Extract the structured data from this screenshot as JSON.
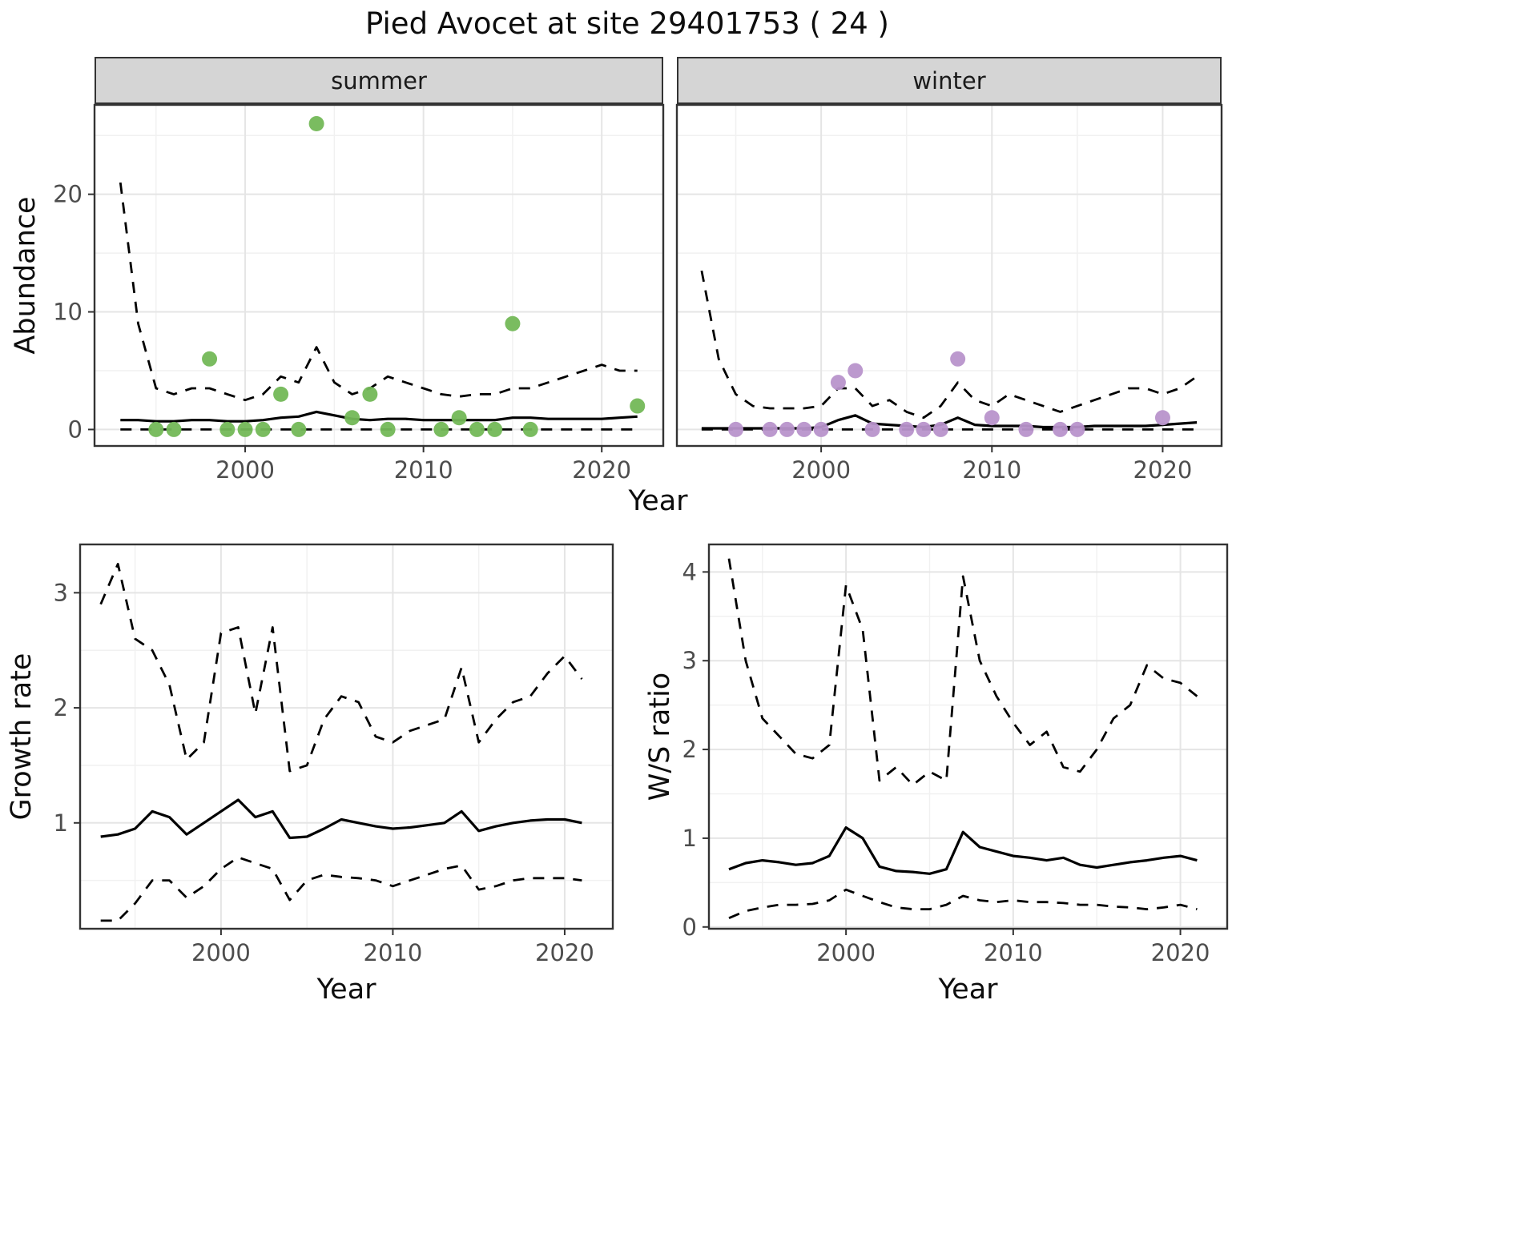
{
  "title": "Pied Avocet at site 29401753 ( 24 )",
  "colors": {
    "summer_point": "#73b857",
    "winter_point": "#b894cb",
    "line": "#000000",
    "grid_major": "#e5e5e5",
    "grid_minor": "#f1f1f1",
    "panel_border": "#333333",
    "strip_bg": "#d5d5d5",
    "axis_text": "#4d4d4d"
  },
  "top": {
    "ylabel": "Abundance",
    "xlabel": "Year",
    "facets": [
      {
        "label": "summer"
      },
      {
        "label": "winter"
      }
    ]
  },
  "bottom_left": {
    "ylabel": "Growth rate",
    "xlabel": "Year"
  },
  "bottom_right": {
    "ylabel": "W/S ratio",
    "xlabel": "Year"
  },
  "chart_data": [
    {
      "id": "abundance-summer",
      "type": "line",
      "title": "summer",
      "xlabel": "Year",
      "ylabel": "Abundance",
      "xlim": [
        1991.55,
        2023.45
      ],
      "ylim": [
        -1.4,
        27.6
      ],
      "xticks": [
        2000,
        2010,
        2020
      ],
      "yticks": [
        0,
        10,
        20
      ],
      "xminor": [
        1995,
        2005,
        2015
      ],
      "yminor": [
        5,
        15,
        25
      ],
      "years": [
        1993,
        1994,
        1995,
        1996,
        1997,
        1998,
        1999,
        2000,
        2001,
        2002,
        2003,
        2004,
        2005,
        2006,
        2007,
        2008,
        2009,
        2010,
        2011,
        2012,
        2013,
        2014,
        2015,
        2016,
        2017,
        2018,
        2019,
        2020,
        2021,
        2022
      ],
      "series": [
        {
          "name": "upper_ci",
          "dash": true,
          "values": [
            21,
            9,
            3.5,
            3,
            3.5,
            3.5,
            3,
            2.5,
            3,
            4.5,
            4,
            7,
            4,
            3,
            3.5,
            4.5,
            4,
            3.5,
            3,
            2.8,
            3,
            3,
            3.5,
            3.5,
            4,
            4.5,
            5,
            5.5,
            5,
            5
          ]
        },
        {
          "name": "lower_ci",
          "dash": true,
          "values": [
            0,
            0,
            0,
            0,
            0,
            0,
            0,
            0,
            0,
            0,
            0,
            0,
            0,
            0,
            0,
            0,
            0,
            0,
            0,
            0,
            0,
            0,
            0,
            0,
            0,
            0,
            0,
            0,
            0,
            0
          ]
        },
        {
          "name": "median",
          "dash": false,
          "values": [
            0.8,
            0.8,
            0.7,
            0.7,
            0.8,
            0.8,
            0.7,
            0.7,
            0.8,
            1.0,
            1.1,
            1.5,
            1.2,
            0.9,
            0.8,
            0.9,
            0.9,
            0.8,
            0.8,
            0.8,
            0.8,
            0.8,
            1.0,
            1.0,
            0.9,
            0.9,
            0.9,
            0.9,
            1.0,
            1.1
          ]
        }
      ],
      "points": {
        "color": "#73b857",
        "data": [
          [
            1995,
            0
          ],
          [
            1996,
            0
          ],
          [
            1998,
            6
          ],
          [
            1999,
            0
          ],
          [
            2000,
            0
          ],
          [
            2001,
            0
          ],
          [
            2002,
            3
          ],
          [
            2003,
            0
          ],
          [
            2004,
            26
          ],
          [
            2006,
            1
          ],
          [
            2007,
            3
          ],
          [
            2008,
            0
          ],
          [
            2011,
            0
          ],
          [
            2012,
            1
          ],
          [
            2013,
            0
          ],
          [
            2014,
            0
          ],
          [
            2015,
            9
          ],
          [
            2016,
            0
          ],
          [
            2022,
            2
          ]
        ]
      }
    },
    {
      "id": "abundance-winter",
      "type": "line",
      "title": "winter",
      "xlabel": "Year",
      "ylabel": "Abundance",
      "xlim": [
        1991.55,
        2023.45
      ],
      "ylim": [
        -1.4,
        27.6
      ],
      "xticks": [
        2000,
        2010,
        2020
      ],
      "yticks": [
        0,
        10,
        20
      ],
      "xminor": [
        1995,
        2005,
        2015
      ],
      "yminor": [
        5,
        15,
        25
      ],
      "years": [
        1993,
        1994,
        1995,
        1996,
        1997,
        1998,
        1999,
        2000,
        2001,
        2002,
        2003,
        2004,
        2005,
        2006,
        2007,
        2008,
        2009,
        2010,
        2011,
        2012,
        2013,
        2014,
        2015,
        2016,
        2017,
        2018,
        2019,
        2020,
        2021,
        2022
      ],
      "series": [
        {
          "name": "upper_ci",
          "dash": true,
          "values": [
            13.5,
            6,
            3,
            2,
            1.8,
            1.8,
            1.8,
            2,
            3.5,
            3.5,
            2,
            2.5,
            1.5,
            1,
            2,
            4,
            2.5,
            2,
            3,
            2.5,
            2,
            1.5,
            2,
            2.5,
            3,
            3.5,
            3.5,
            3,
            3.5,
            4.5
          ]
        },
        {
          "name": "lower_ci",
          "dash": true,
          "values": [
            0,
            0,
            0,
            0,
            0,
            0,
            0,
            0,
            0,
            0,
            0,
            0,
            0,
            0,
            0,
            0,
            0,
            0,
            0,
            0,
            0,
            0,
            0,
            0,
            0,
            0,
            0,
            0,
            0,
            0
          ]
        },
        {
          "name": "median",
          "dash": false,
          "values": [
            0.1,
            0.1,
            0.1,
            0.1,
            0.1,
            0.1,
            0.1,
            0.2,
            0.8,
            1.2,
            0.5,
            0.4,
            0.3,
            0.2,
            0.4,
            1.0,
            0.4,
            0.3,
            0.3,
            0.3,
            0.2,
            0.2,
            0.2,
            0.3,
            0.3,
            0.3,
            0.3,
            0.4,
            0.5,
            0.6
          ]
        }
      ],
      "points": {
        "color": "#b894cb",
        "data": [
          [
            1995,
            0
          ],
          [
            1997,
            0
          ],
          [
            1998,
            0
          ],
          [
            1999,
            0
          ],
          [
            2000,
            0
          ],
          [
            2001,
            4
          ],
          [
            2002,
            5
          ],
          [
            2003,
            0
          ],
          [
            2005,
            0
          ],
          [
            2006,
            0
          ],
          [
            2007,
            0
          ],
          [
            2008,
            6
          ],
          [
            2010,
            1
          ],
          [
            2012,
            0
          ],
          [
            2014,
            0
          ],
          [
            2015,
            0
          ],
          [
            2020,
            1
          ]
        ]
      }
    },
    {
      "id": "growth-rate",
      "type": "line",
      "title": "Growth rate",
      "xlabel": "Year",
      "ylabel": "Growth rate",
      "xlim": [
        1991.8,
        2022.8
      ],
      "ylim": [
        0.08,
        3.42
      ],
      "xticks": [
        2000,
        2010,
        2020
      ],
      "yticks": [
        1,
        2,
        3
      ],
      "xminor": [
        1995,
        2005,
        2015
      ],
      "yminor": [
        0.5,
        1.5,
        2.5
      ],
      "years": [
        1993,
        1994,
        1995,
        1996,
        1997,
        1998,
        1999,
        2000,
        2001,
        2002,
        2003,
        2004,
        2005,
        2006,
        2007,
        2008,
        2009,
        2010,
        2011,
        2012,
        2013,
        2014,
        2015,
        2016,
        2017,
        2018,
        2019,
        2020,
        2021
      ],
      "series": [
        {
          "name": "upper_ci",
          "dash": true,
          "values": [
            2.9,
            3.25,
            2.6,
            2.5,
            2.2,
            1.55,
            1.7,
            2.65,
            2.7,
            1.95,
            2.7,
            1.45,
            1.5,
            1.9,
            2.1,
            2.05,
            1.75,
            1.7,
            1.8,
            1.85,
            1.9,
            2.35,
            1.7,
            1.9,
            2.05,
            2.1,
            2.3,
            2.45,
            2.25
          ]
        },
        {
          "name": "lower_ci",
          "dash": true,
          "values": [
            0.15,
            0.15,
            0.3,
            0.5,
            0.5,
            0.35,
            0.45,
            0.6,
            0.7,
            0.65,
            0.6,
            0.33,
            0.5,
            0.55,
            0.53,
            0.52,
            0.5,
            0.45,
            0.5,
            0.55,
            0.6,
            0.63,
            0.42,
            0.45,
            0.5,
            0.52,
            0.52,
            0.52,
            0.5
          ]
        },
        {
          "name": "median",
          "dash": false,
          "values": [
            0.88,
            0.9,
            0.95,
            1.1,
            1.05,
            0.9,
            1.0,
            1.1,
            1.2,
            1.05,
            1.1,
            0.87,
            0.88,
            0.95,
            1.03,
            1.0,
            0.97,
            0.95,
            0.96,
            0.98,
            1.0,
            1.1,
            0.93,
            0.97,
            1.0,
            1.02,
            1.03,
            1.03,
            1.0
          ]
        }
      ]
    },
    {
      "id": "ws-ratio",
      "type": "line",
      "title": "W/S ratio",
      "xlabel": "Year",
      "ylabel": "W/S ratio",
      "xlim": [
        1991.8,
        2022.8
      ],
      "ylim": [
        -0.02,
        4.31
      ],
      "xticks": [
        2000,
        2010,
        2020
      ],
      "yticks": [
        0,
        1,
        2,
        3,
        4
      ],
      "xminor": [
        1995,
        2005,
        2015
      ],
      "yminor": [
        0.5,
        1.5,
        2.5,
        3.5
      ],
      "years": [
        1993,
        1994,
        1995,
        1996,
        1997,
        1998,
        1999,
        2000,
        2001,
        2002,
        2003,
        2004,
        2005,
        2006,
        2007,
        2008,
        2009,
        2010,
        2011,
        2012,
        2013,
        2014,
        2015,
        2016,
        2017,
        2018,
        2019,
        2020,
        2021
      ],
      "series": [
        {
          "name": "upper_ci",
          "dash": true,
          "values": [
            4.15,
            3.0,
            2.35,
            2.15,
            1.95,
            1.9,
            2.05,
            3.85,
            3.35,
            1.65,
            1.8,
            1.6,
            1.75,
            1.65,
            3.95,
            3.0,
            2.6,
            2.3,
            2.05,
            2.2,
            1.8,
            1.75,
            2.0,
            2.35,
            2.5,
            2.95,
            2.8,
            2.75,
            2.6
          ]
        },
        {
          "name": "lower_ci",
          "dash": true,
          "values": [
            0.1,
            0.18,
            0.22,
            0.25,
            0.25,
            0.26,
            0.3,
            0.42,
            0.35,
            0.28,
            0.22,
            0.2,
            0.2,
            0.25,
            0.35,
            0.3,
            0.28,
            0.3,
            0.28,
            0.28,
            0.27,
            0.25,
            0.25,
            0.23,
            0.22,
            0.2,
            0.22,
            0.25,
            0.2
          ]
        },
        {
          "name": "median",
          "dash": false,
          "values": [
            0.65,
            0.72,
            0.75,
            0.73,
            0.7,
            0.72,
            0.8,
            1.12,
            1.0,
            0.68,
            0.63,
            0.62,
            0.6,
            0.65,
            1.07,
            0.9,
            0.85,
            0.8,
            0.78,
            0.75,
            0.78,
            0.7,
            0.67,
            0.7,
            0.73,
            0.75,
            0.78,
            0.8,
            0.75
          ]
        }
      ]
    }
  ]
}
